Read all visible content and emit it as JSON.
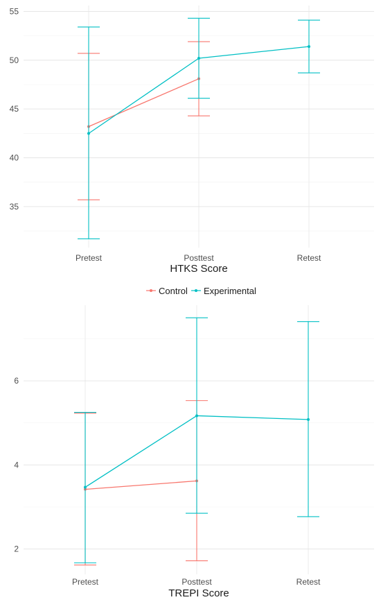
{
  "legend": {
    "placement": "between panels",
    "items": [
      {
        "label": "Control",
        "color": "#F8766D"
      },
      {
        "label": "Experimental",
        "color": "#00BFC4"
      }
    ]
  },
  "chart_data": [
    {
      "type": "line",
      "title": "",
      "xlabel": "HTKS Score",
      "ylabel": "",
      "categories": [
        "Pretest",
        "Posttest",
        "Retest"
      ],
      "ylim": [
        30.8,
        55.6
      ],
      "yticks": [
        35,
        40,
        45,
        50,
        55
      ],
      "grid": true,
      "error_bars": true,
      "series": [
        {
          "name": "Control",
          "color": "#F8766D",
          "values": [
            43.2,
            48.1,
            null
          ],
          "lower": [
            35.7,
            44.3,
            null
          ],
          "upper": [
            50.7,
            51.9,
            null
          ]
        },
        {
          "name": "Experimental",
          "color": "#00BFC4",
          "values": [
            42.5,
            50.2,
            51.4
          ],
          "lower": [
            31.7,
            46.1,
            48.7
          ],
          "upper": [
            53.4,
            54.3,
            54.1
          ]
        }
      ]
    },
    {
      "type": "line",
      "title": "",
      "xlabel": "TREPI Score",
      "ylabel": "",
      "categories": [
        "Pretest",
        "Posttest",
        "Retest"
      ],
      "ylim": [
        1.4,
        7.8
      ],
      "yticks": [
        2,
        4,
        6
      ],
      "grid": true,
      "error_bars": true,
      "series": [
        {
          "name": "Control",
          "color": "#F8766D",
          "values": [
            3.42,
            3.62,
            null
          ],
          "lower": [
            1.62,
            1.72,
            null
          ],
          "upper": [
            5.23,
            5.53,
            null
          ]
        },
        {
          "name": "Experimental",
          "color": "#00BFC4",
          "values": [
            3.47,
            5.17,
            5.08
          ],
          "lower": [
            1.67,
            2.85,
            2.77
          ],
          "upper": [
            5.25,
            7.5,
            7.41
          ]
        }
      ]
    }
  ]
}
